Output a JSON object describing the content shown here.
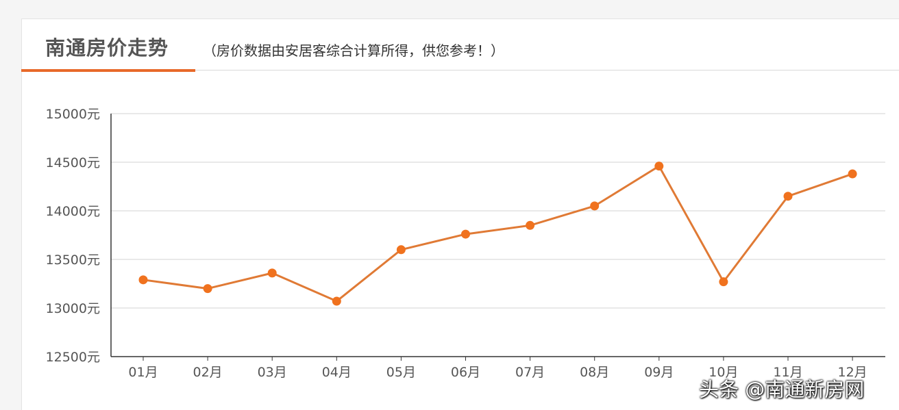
{
  "header": {
    "title": "南通房价走势",
    "subtitle": "（房价数据由安居客综合计算所得，供您参考！）"
  },
  "watermark": "头条 @南通新房网",
  "colors": {
    "accent": "#e8692a",
    "line": "#e07a35",
    "point": "#f0721e",
    "grid": "#d3d3d3",
    "axis": "#333333"
  },
  "chart_data": {
    "type": "line",
    "title": "南通房价走势",
    "subtitle": "（房价数据由安居客综合计算所得，供您参考！）",
    "categories": [
      "01月",
      "02月",
      "03月",
      "04月",
      "05月",
      "06月",
      "07月",
      "08月",
      "09月",
      "10月",
      "11月",
      "12月"
    ],
    "series": [
      {
        "values": [
          13290,
          13200,
          13360,
          13070,
          13600,
          13760,
          13850,
          14050,
          14460,
          13270,
          14150,
          14380
        ]
      }
    ],
    "yticks": [
      "12500元",
      "13000元",
      "13500元",
      "14000元",
      "14500元",
      "15000元"
    ],
    "ytick_values": [
      12500,
      13000,
      13500,
      14000,
      14500,
      15000
    ],
    "ylim": [
      12500,
      15000
    ],
    "grid": "horizontal",
    "legend": "none"
  }
}
